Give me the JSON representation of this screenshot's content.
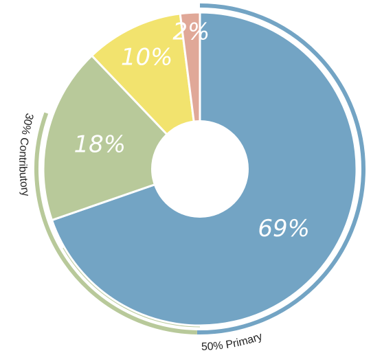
{
  "chart_data": {
    "type": "pie",
    "categories": [
      "69%",
      "18%",
      "10%",
      "2%"
    ],
    "values": [
      69,
      18,
      10,
      2
    ],
    "labels": [
      "69%",
      "18%",
      "10%",
      "2%"
    ],
    "colors": [
      "#73a4c4",
      "#b8c99a",
      "#f2e36e",
      "#e0a898"
    ],
    "donut": true,
    "legend": "none",
    "annotations": [
      {
        "text": "50% Primary",
        "color": "#73a4c4",
        "secondary_color": "#b8c99a"
      },
      {
        "text": "30% Contributory",
        "color": "#b8c99a"
      }
    ]
  }
}
